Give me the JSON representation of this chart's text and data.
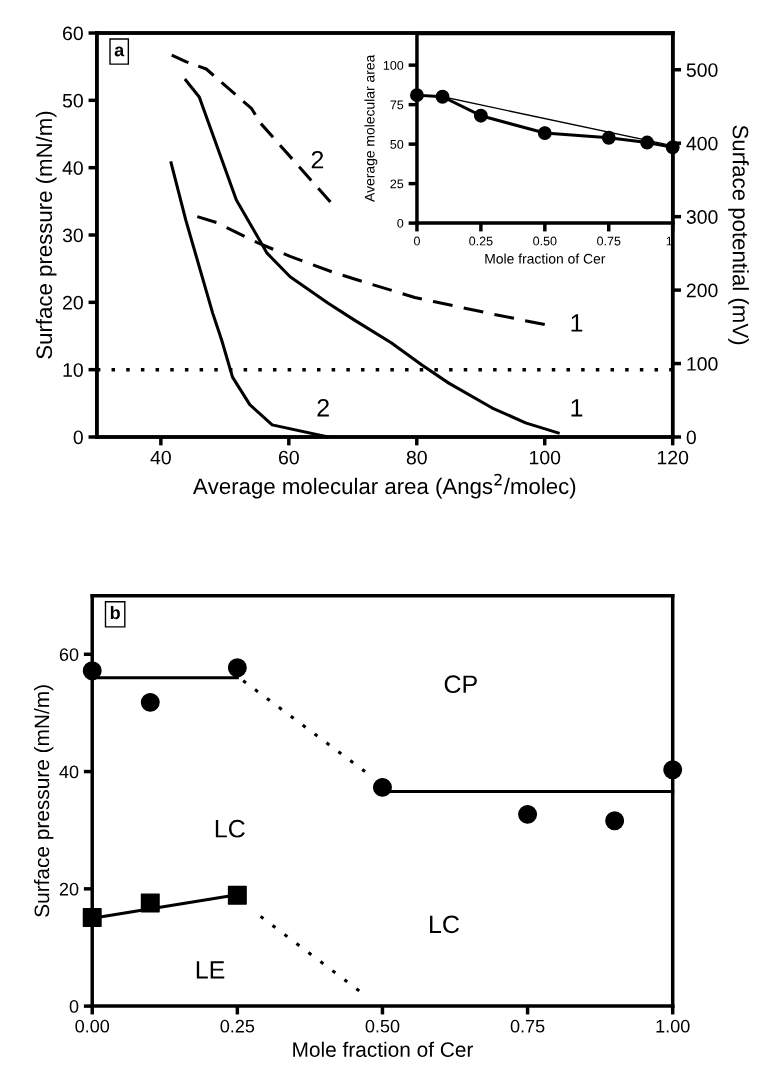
{
  "chart_data": [
    {
      "type": "line",
      "xlabel": "Average molecular area (Angs$^{2}$/molec)",
      "ylabel": "Surface pressure (mN/m)",
      "y2label": "Surface potential (mV)",
      "xlim": [
        30,
        120
      ],
      "xticks": [
        40,
        60,
        80,
        100,
        120
      ],
      "ylim": [
        0,
        60
      ],
      "yticks": [
        0,
        10,
        20,
        30,
        40,
        50,
        60
      ],
      "y2lim": [
        0,
        550
      ],
      "y2ticks": [
        0,
        100,
        200,
        300,
        400,
        500
      ],
      "grid": false,
      "marker": "none",
      "series": [
        {
          "color": "#000000",
          "line_style": "solid",
          "x": [
            43.9,
            46.0,
            51.8,
            56.6,
            60.2,
            66.1,
            70.2,
            76.0,
            80.8,
            85.0,
            91.8,
            97.0,
            102.1
          ],
          "values": [
            53.0,
            50.5,
            35.2,
            27.3,
            23.8,
            19.9,
            17.4,
            14.0,
            10.7,
            8.0,
            4.3,
            2.1,
            0.6
          ]
        },
        {
          "color": "#000000",
          "line_style": "solid",
          "x": [
            41.6,
            43.9,
            48.1,
            49.5,
            51.2,
            53.9,
            57.4,
            66.1
          ],
          "values": [
            40.7,
            32.2,
            18.4,
            14.4,
            8.9,
            4.8,
            1.8,
            0
          ]
        },
        {
          "color": "#000000",
          "line_style": "dashed",
          "axis": "y2",
          "x": [
            45.7,
            48.7,
            55.0,
            60.2,
            67.0,
            72.9,
            79.7,
            82.8,
            92.1,
            100.0
          ],
          "values": [
            300,
            292,
            265,
            246,
            224,
            208,
            190,
            184,
            167,
            153
          ]
        },
        {
          "color": "#000000",
          "line_style": "dashed",
          "axis": "y2",
          "x": [
            41.7,
            43.9,
            47.1,
            54.2,
            55.5,
            66.5
          ],
          "values": [
            520,
            511,
            501,
            447,
            428,
            320
          ]
        }
      ],
      "ref_lines": [
        {
          "axis": "y",
          "value": 10,
          "color": "#000000",
          "line_style": "dotted"
        }
      ],
      "annotations": [
        "a",
        "2",
        "2",
        "1",
        "1"
      ]
    },
    {
      "type": "line",
      "xlabel": "Mole fraction of Cer",
      "ylabel": "Average molecular area",
      "xlim": [
        0,
        1
      ],
      "xticks": [
        {
          "value": 0,
          "label": "0"
        },
        {
          "value": 0.25,
          "label": "0.25"
        },
        {
          "value": 0.5,
          "label": "0.50"
        },
        {
          "value": 0.75,
          "label": "0.75"
        },
        {
          "value": 1,
          "label": "1"
        }
      ],
      "ylim": [
        0,
        120
      ],
      "yticks": [
        0,
        25,
        50,
        75,
        100
      ],
      "grid": false,
      "series": [
        {
          "color": "#000000",
          "line_style": "solid",
          "x": [
            0.1,
            1.0
          ],
          "values": [
            80,
            49
          ]
        },
        {
          "color": "#000000",
          "marker": "circle",
          "line_style": "solid",
          "x": [
            0,
            0.1,
            0.25,
            0.5,
            0.75,
            0.9,
            1.0
          ],
          "values": [
            81,
            80,
            68,
            57,
            54,
            51,
            48
          ]
        }
      ]
    },
    {
      "type": "scatter",
      "xlabel": "Mole fraction of Cer",
      "ylabel": "Surface pressure (mN/m)",
      "xlim": [
        0,
        1
      ],
      "xticks": [
        {
          "value": 0,
          "label": "0.00"
        },
        {
          "value": 0.25,
          "label": "0.25"
        },
        {
          "value": 0.5,
          "label": "0.50"
        },
        {
          "value": 0.75,
          "label": "0.75"
        },
        {
          "value": 1,
          "label": "1.00"
        }
      ],
      "ylim": [
        0,
        70
      ],
      "yticks": [
        0,
        20,
        40,
        60
      ],
      "grid": false,
      "series": [
        {
          "type": "line",
          "marker": "none",
          "line_style": "solid",
          "color": "#000000",
          "x": [
            0,
            0.25
          ],
          "values": [
            56,
            56
          ]
        },
        {
          "type": "line",
          "marker": "none",
          "line_style": "solid",
          "color": "#000000",
          "x": [
            0.5,
            1.0
          ],
          "values": [
            36.6,
            36.6
          ]
        },
        {
          "type": "line",
          "marker": "none",
          "line_style": "solid",
          "color": "#000000",
          "x": [
            0,
            0.25
          ],
          "values": [
            15,
            19
          ]
        },
        {
          "type": "line",
          "marker": "none",
          "line_style": "dotted",
          "color": "#000000",
          "x": [
            0.26,
            0.47
          ],
          "values": [
            55.5,
            40
          ]
        },
        {
          "type": "line",
          "marker": "none",
          "line_style": "dotted",
          "color": "#000000",
          "x": [
            0.29,
            0.46
          ],
          "values": [
            15.3,
            2.6
          ]
        },
        {
          "type": "scatter",
          "marker": "circle",
          "color": "#000000",
          "x": [
            0,
            0.1,
            0.25,
            0.5,
            0.75,
            0.9,
            1.0
          ],
          "values": [
            57.2,
            51.8,
            57.7,
            37.3,
            32.7,
            31.6,
            40.3
          ]
        },
        {
          "type": "scatter",
          "marker": "square",
          "color": "#000000",
          "x": [
            0,
            0.1,
            0.25
          ],
          "values": [
            15.1,
            17.6,
            18.9
          ]
        }
      ],
      "annotations": [
        "b",
        "CP",
        "LC",
        "LC",
        "LE"
      ]
    }
  ]
}
